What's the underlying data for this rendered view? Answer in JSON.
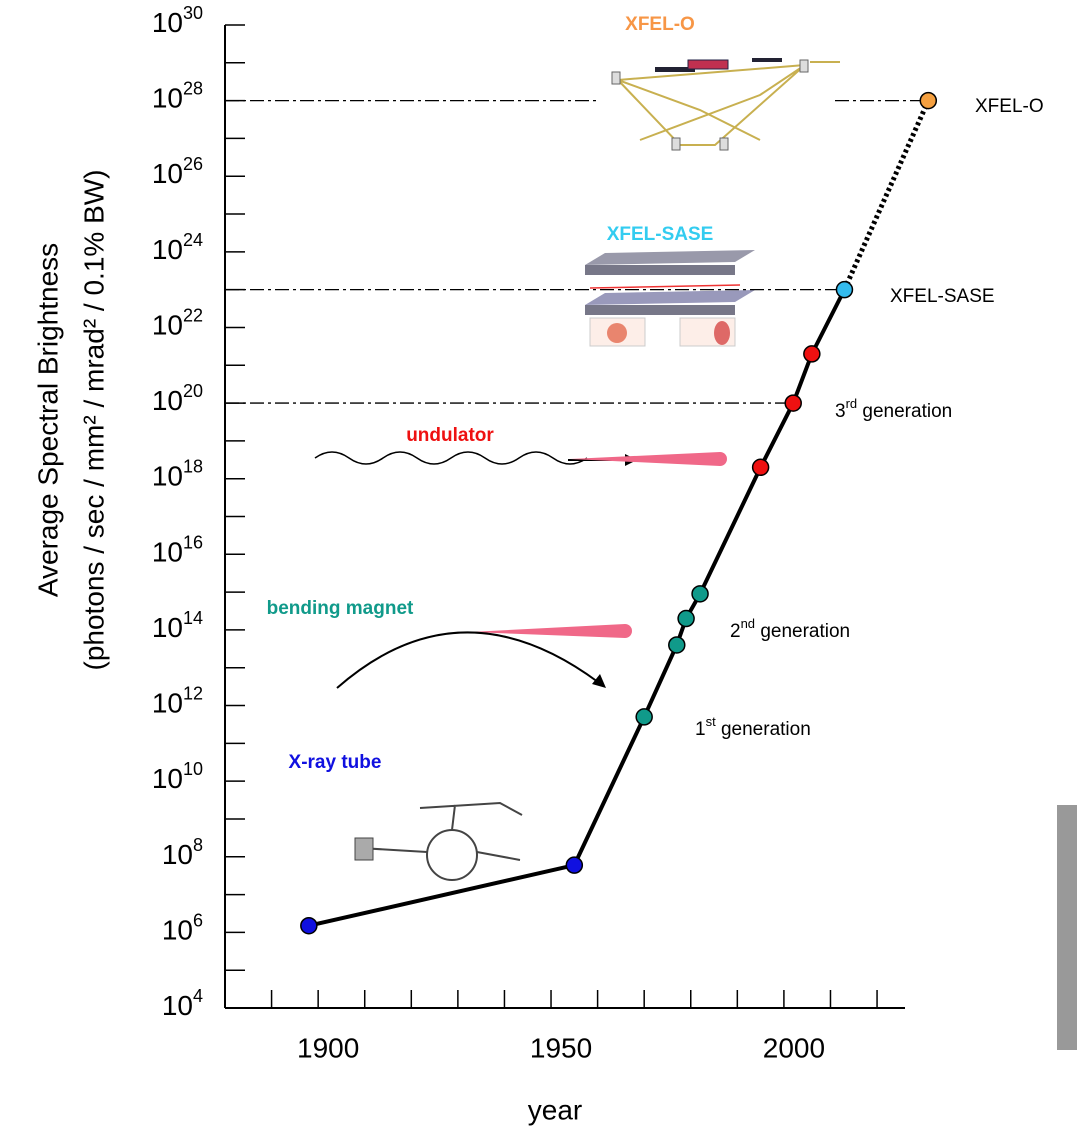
{
  "chart_data": {
    "type": "line",
    "xlabel": "year",
    "ylabel": [
      "Average Spectral Brightness",
      "(photons / sec / mm² / mrad² / 0.1% BW)"
    ],
    "xlim": [
      1880,
      2026
    ],
    "xticks": [
      1900,
      1950,
      2000
    ],
    "x_minor_ticks": [
      1890,
      1910,
      1920,
      1930,
      1940,
      1960,
      1970,
      1980,
      1990,
      2010,
      2020
    ],
    "ylim": [
      10000.0,
      1e+30
    ],
    "log_y": true,
    "yticks": [
      {
        "value": 10000.0,
        "label": "10",
        "exponent": "4"
      },
      {
        "value": 1000000.0,
        "label": "10",
        "exponent": "6"
      },
      {
        "value": 100000000.0,
        "label": "10",
        "exponent": "8"
      },
      {
        "value": 10000000000.0,
        "label": "10",
        "exponent": "10"
      },
      {
        "value": 1000000000000.0,
        "label": "10",
        "exponent": "12"
      },
      {
        "value": 100000000000000.0,
        "label": "10",
        "exponent": "14"
      },
      {
        "value": 1e+16,
        "label": "10",
        "exponent": "16"
      },
      {
        "value": 1e+18,
        "label": "10",
        "exponent": "18"
      },
      {
        "value": 1e+20,
        "label": "10",
        "exponent": "20"
      },
      {
        "value": 1e+22,
        "label": "10",
        "exponent": "22"
      },
      {
        "value": 1e+24,
        "label": "10",
        "exponent": "24"
      },
      {
        "value": 1e+26,
        "label": "10",
        "exponent": "26"
      },
      {
        "value": 1e+28,
        "label": "10",
        "exponent": "28"
      },
      {
        "value": 1e+30,
        "label": "10",
        "exponent": "30"
      }
    ],
    "y_minor_ticks": [
      100000.0,
      10000000.0,
      1000000000.0,
      100000000000.0,
      10000000000000.0,
      1000000000000000.0,
      1e+17,
      1e+19,
      1e+21,
      1e+23,
      1e+25,
      1e+27,
      1e+29
    ],
    "reference_lines": [
      1e+28,
      1e+23,
      1e+20
    ],
    "series": [
      {
        "line_style": "solid",
        "color": "#000000",
        "x": [
          1898,
          1955,
          1970,
          1977,
          1979,
          1982,
          1995,
          2002,
          2006,
          2013
        ],
        "values": [
          1500000.0,
          60000000.0,
          500000000000.0,
          40000000000000.0,
          200000000000000.0,
          900000000000000.0,
          2e+18,
          1e+20,
          2e+21,
          1e+23
        ],
        "point_colors": [
          "#1010e0",
          "#1010e0",
          "#109a8a",
          "#109a8a",
          "#109a8a",
          "#109a8a",
          "#ee1111",
          "#ee1111",
          "#ee1111",
          "#33bbee"
        ]
      },
      {
        "line_style": "dotted",
        "color": "#000000",
        "x": [
          2013,
          2031
        ],
        "values": [
          1e+23,
          1e+28
        ],
        "point_colors": [
          null,
          "#f5a040"
        ]
      }
    ],
    "annotations": [
      {
        "text": "XFEL-O"
      },
      {
        "text": "XFEL-SASE"
      },
      {
        "text": "3",
        "sup": "rd",
        "rest": " generation"
      },
      {
        "text": "2",
        "sup": "nd",
        "rest": " generation"
      },
      {
        "text": "1",
        "sup": "st",
        "rest": " generation"
      }
    ],
    "headings": [
      {
        "text": "XFEL-O",
        "color": "#f79646"
      },
      {
        "text": "XFEL-SASE",
        "color": "#33ccf0"
      },
      {
        "text": "undulator",
        "color": "#ee1111"
      },
      {
        "text": "bending magnet",
        "color": "#109a8a"
      },
      {
        "text": "X-ray tube",
        "color": "#1010e0"
      }
    ]
  }
}
